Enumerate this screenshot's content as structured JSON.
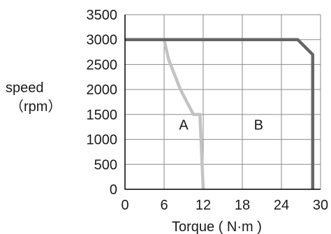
{
  "chart_data": {
    "type": "line",
    "ylabel": "speed",
    "ylabel_unit": "（rpm）",
    "xlabel": "Torque ( N·m )",
    "xlim": [
      0,
      30
    ],
    "ylim": [
      0,
      3500
    ],
    "xticks": [
      "0",
      "6",
      "12",
      "18",
      "24",
      "30"
    ],
    "yticks": [
      "0",
      "500",
      "1000",
      "1500",
      "2000",
      "2500",
      "3000",
      "3500"
    ],
    "grid": true,
    "regions": [
      {
        "label": "A",
        "x": 9,
        "y": 1200
      },
      {
        "label": "B",
        "x": 20.5,
        "y": 1200
      }
    ],
    "series": [
      {
        "color": "#c3c3c3",
        "points": [
          [
            0,
            3000
          ],
          [
            6,
            3000
          ],
          [
            6.7,
            2600
          ],
          [
            8.5,
            2000
          ],
          [
            10.5,
            1500
          ],
          [
            11.5,
            1500
          ],
          [
            12,
            0
          ]
        ]
      },
      {
        "color": "#666666",
        "points": [
          [
            0,
            3000
          ],
          [
            26.5,
            3000
          ],
          [
            28.8,
            2700
          ],
          [
            28.8,
            0
          ]
        ]
      }
    ]
  }
}
